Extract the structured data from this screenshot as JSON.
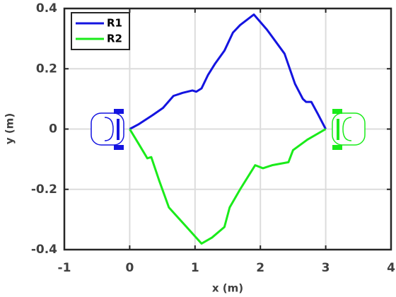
{
  "chart_data": {
    "type": "line",
    "xlabel": "x (m)",
    "ylabel": "y (m)",
    "xlim": [
      -1,
      4
    ],
    "xticks": [
      -1,
      0,
      1,
      2,
      3,
      4
    ],
    "ylim": [
      -0.4,
      0.4
    ],
    "yticks": [
      -0.4,
      -0.2,
      0,
      0.2,
      0.4
    ],
    "grid": true,
    "legend": "upper left",
    "series": [
      {
        "name": "R1",
        "color": "#1414e0",
        "x": [
          0,
          0.13,
          0.35,
          0.51,
          0.67,
          0.81,
          0.96,
          1.02,
          1.1,
          1.2,
          1.31,
          1.45,
          1.58,
          1.69,
          1.9,
          2.1,
          2.37,
          2.45,
          2.53,
          2.65,
          2.7,
          2.78,
          2.88,
          3.0
        ],
        "values": [
          0,
          0.015,
          0.046,
          0.07,
          0.11,
          0.12,
          0.128,
          0.124,
          0.135,
          0.18,
          0.218,
          0.26,
          0.32,
          0.345,
          0.38,
          0.33,
          0.25,
          0.2,
          0.15,
          0.1,
          0.09,
          0.09,
          0.05,
          0
        ]
      },
      {
        "name": "R2",
        "color": "#1aeb1a",
        "x": [
          0,
          0.14,
          0.27,
          0.33,
          0.45,
          0.6,
          0.85,
          1.1,
          1.26,
          1.45,
          1.53,
          1.69,
          1.92,
          2.04,
          2.18,
          2.43,
          2.5,
          2.72,
          3.0
        ],
        "values": [
          0,
          -0.05,
          -0.097,
          -0.093,
          -0.17,
          -0.26,
          -0.32,
          -0.38,
          -0.36,
          -0.325,
          -0.26,
          -0.2,
          -0.12,
          -0.13,
          -0.12,
          -0.11,
          -0.07,
          -0.035,
          0
        ]
      }
    ]
  }
}
